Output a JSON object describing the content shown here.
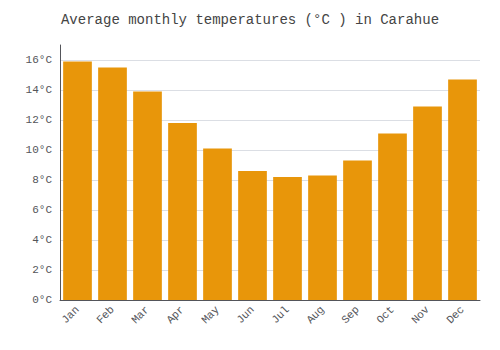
{
  "chart_data": {
    "type": "bar",
    "title": "Average monthly temperatures (°C ) in Carahue",
    "categories": [
      "Jan",
      "Feb",
      "Mar",
      "Apr",
      "May",
      "Jun",
      "Jul",
      "Aug",
      "Sep",
      "Oct",
      "Nov",
      "Dec"
    ],
    "values": [
      15.9,
      15.5,
      13.9,
      11.8,
      10.1,
      8.6,
      8.2,
      8.3,
      9.3,
      11.1,
      12.9,
      14.7
    ],
    "color": "#E8960A",
    "ylim": [
      0,
      17
    ],
    "yticks": [
      {
        "value": 0,
        "label": "0°C"
      },
      {
        "value": 2,
        "label": "2°C"
      },
      {
        "value": 4,
        "label": "4°C"
      },
      {
        "value": 6,
        "label": "6°C"
      },
      {
        "value": 8,
        "label": "8°C"
      },
      {
        "value": 10,
        "label": "10°C"
      },
      {
        "value": 12,
        "label": "12°C"
      },
      {
        "value": 14,
        "label": "14°C"
      },
      {
        "value": 16,
        "label": "16°C"
      }
    ],
    "grid": true
  }
}
